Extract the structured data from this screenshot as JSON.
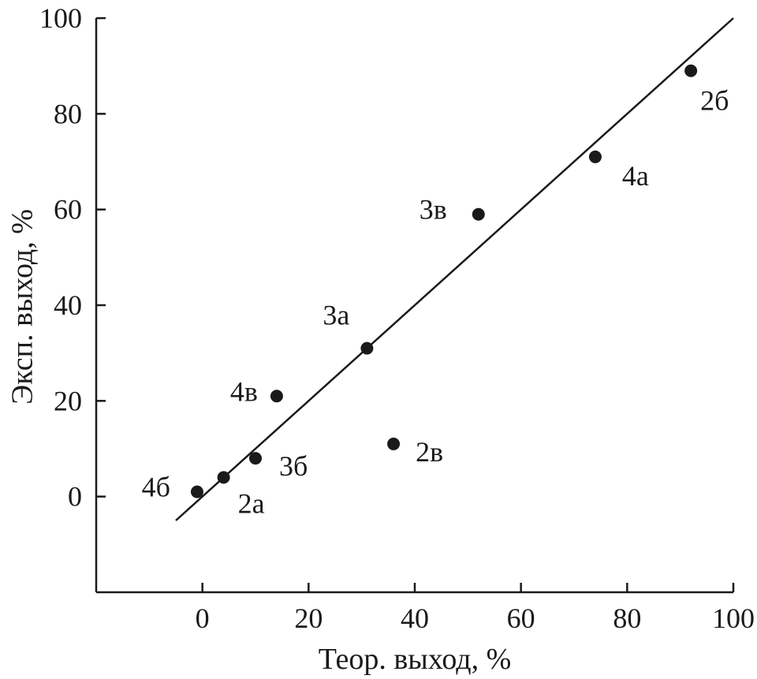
{
  "chart_data": {
    "type": "scatter",
    "title": "",
    "xlabel": "Теор. выход, %",
    "ylabel": "Эксп. выход, %",
    "xlim": [
      -20,
      100
    ],
    "ylim": [
      -20,
      100
    ],
    "x_ticks": [
      0,
      20,
      40,
      60,
      80,
      100
    ],
    "y_ticks": [
      0,
      20,
      40,
      60,
      80,
      100
    ],
    "grid": false,
    "points": [
      {
        "label": "2а",
        "x": 4,
        "y": 4
      },
      {
        "label": "2б",
        "x": 92,
        "y": 89
      },
      {
        "label": "2в",
        "x": 36,
        "y": 11
      },
      {
        "label": "3а",
        "x": 31,
        "y": 31
      },
      {
        "label": "3б",
        "x": 10,
        "y": 8
      },
      {
        "label": "3в",
        "x": 52,
        "y": 59
      },
      {
        "label": "4а",
        "x": 74,
        "y": 71
      },
      {
        "label": "4б",
        "x": -1,
        "y": 1
      },
      {
        "label": "4в",
        "x": 14,
        "y": 21
      }
    ],
    "fit_line": {
      "x": [
        -5,
        100
      ],
      "y": [
        -5,
        100
      ]
    },
    "colors": {
      "marker": "#1a1a1a",
      "line": "#1a1a1a",
      "axis": "#1a1a1a"
    }
  }
}
